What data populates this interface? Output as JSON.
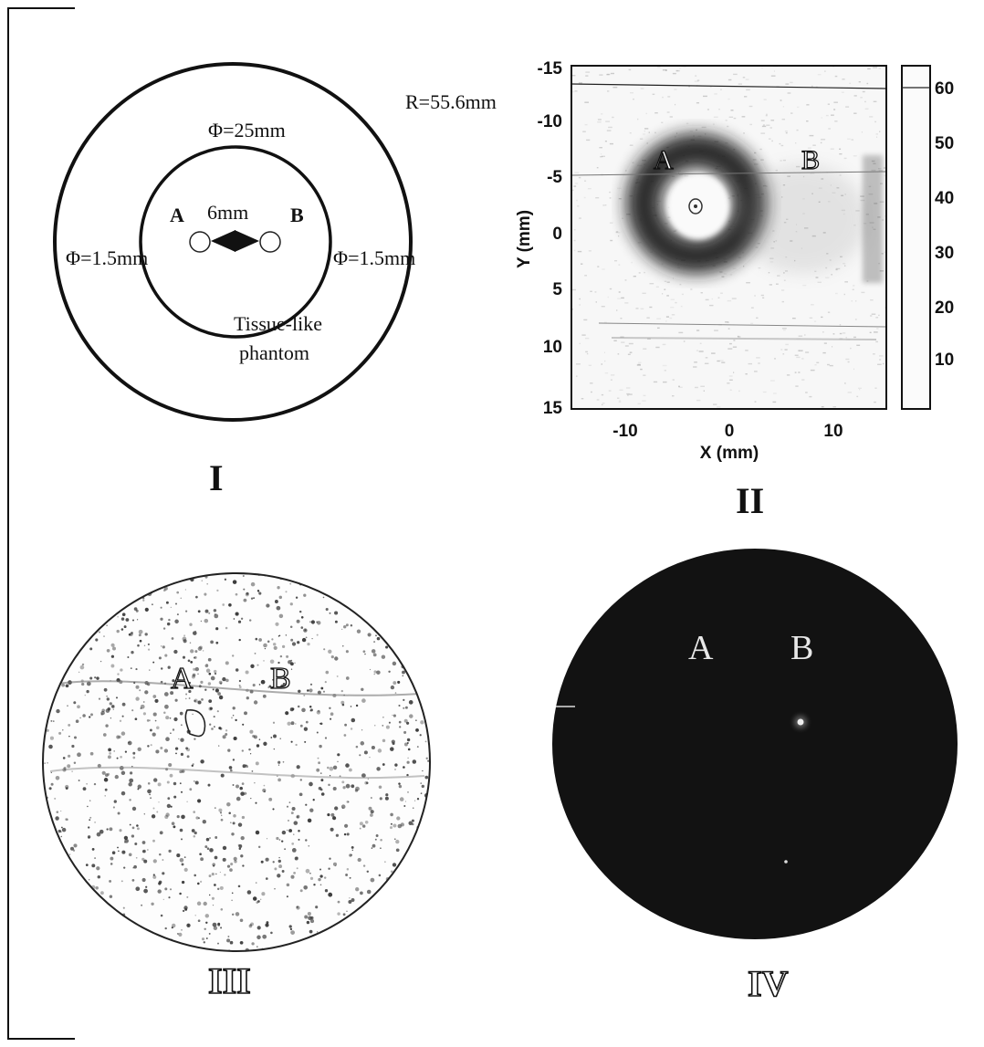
{
  "panel_I": {
    "caption": "I",
    "outer_radius_label": "R=55.6mm",
    "inner_diameter_label": "Φ=25mm",
    "label_a": "A",
    "label_b": "B",
    "separation_label": "6mm",
    "left_hole_label": "Φ=1.5mm",
    "right_hole_label": "Φ=1.5mm",
    "phantom_label_line1": "Tissue-like",
    "phantom_label_line2": "phantom"
  },
  "panel_II": {
    "caption": "II",
    "label_a": "A",
    "label_b": "B",
    "xlabel": "X (mm)",
    "ylabel": "Y (mm)",
    "x_ticks": [
      "-10",
      "0",
      "10"
    ],
    "y_ticks": [
      "-15",
      "-10",
      "-5",
      "0",
      "5",
      "10",
      "15"
    ],
    "colorbar_ticks": [
      "60",
      "50",
      "40",
      "30",
      "20",
      "10"
    ]
  },
  "panel_III": {
    "caption": "III",
    "label_a": "A",
    "label_b": "B"
  },
  "panel_IV": {
    "caption": "IV",
    "label_a": "A",
    "label_b": "B"
  },
  "colors": {
    "line": "#111111",
    "ring_dark": "#2a2a2a",
    "disc_dark": "#111111",
    "speckle": "#333333"
  }
}
